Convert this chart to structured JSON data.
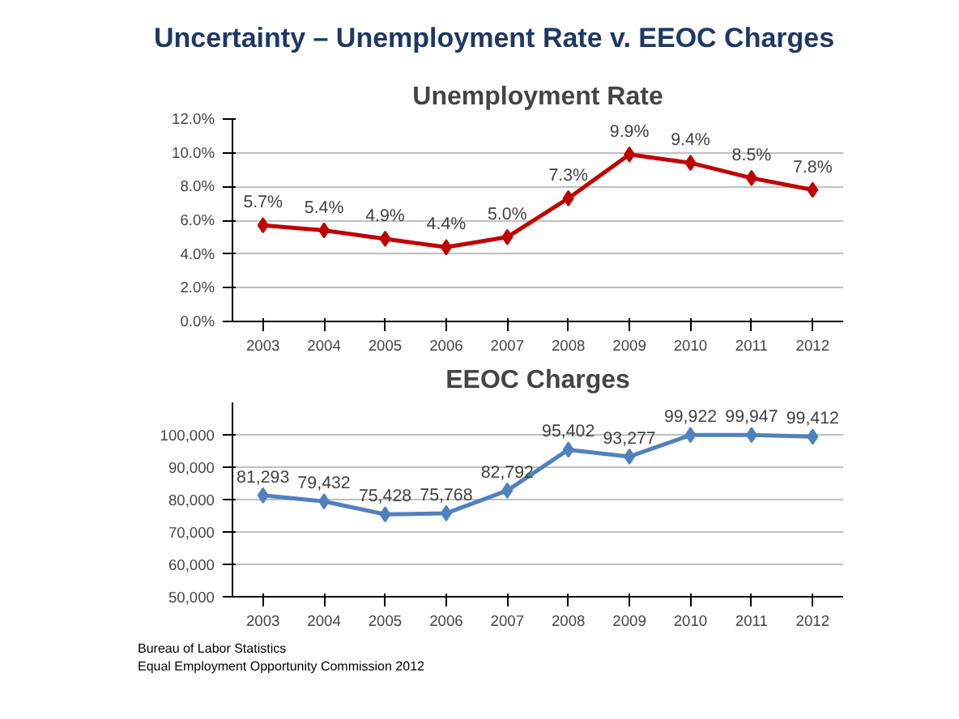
{
  "chart_data": [
    {
      "type": "line",
      "title": "Uncertainty – Unemployment Rate v. EEOC Charges",
      "subtitle": "Unemployment Rate",
      "categories": [
        "2003",
        "2004",
        "2005",
        "2006",
        "2007",
        "2008",
        "2009",
        "2010",
        "2011",
        "2012"
      ],
      "series": [
        {
          "color": "#c00000",
          "values": [
            5.7,
            5.4,
            4.9,
            4.4,
            5.0,
            7.3,
            9.9,
            9.4,
            8.5,
            7.8
          ],
          "value_labels": [
            "5.7%",
            "5.4%",
            "4.9%",
            "4.4%",
            "5.0%",
            "7.3%",
            "9.9%",
            "9.4%",
            "8.5%",
            "7.8%"
          ]
        }
      ],
      "ylim": [
        0,
        12
      ],
      "yticks": [
        {
          "value": 0,
          "label": "0.0%"
        },
        {
          "value": 2,
          "label": "2.0%"
        },
        {
          "value": 4,
          "label": "4.0%"
        },
        {
          "value": 6,
          "label": "6.0%"
        },
        {
          "value": 8,
          "label": "8.0%"
        },
        {
          "value": 10,
          "label": "10.0%"
        },
        {
          "value": 12,
          "label": "12.0%"
        }
      ],
      "grid": "y",
      "marker": "diamond",
      "line_style": "solid"
    },
    {
      "type": "line",
      "title": "EEOC Charges",
      "categories": [
        "2003",
        "2004",
        "2005",
        "2006",
        "2007",
        "2008",
        "2009",
        "2010",
        "2011",
        "2012"
      ],
      "series": [
        {
          "color": "#4f81bd",
          "values": [
            81293,
            79432,
            75428,
            75768,
            82792,
            95402,
            93277,
            99922,
            99947,
            99412
          ],
          "value_labels": [
            "81,293",
            "79,432",
            "75,428",
            "75,768",
            "82,792",
            "95,402",
            "93,277",
            "99,922",
            "99,947",
            "99,412"
          ]
        }
      ],
      "ylim": [
        50000,
        110000
      ],
      "yticks": [
        {
          "value": 50000,
          "label": "50,000"
        },
        {
          "value": 60000,
          "label": "60,000"
        },
        {
          "value": 70000,
          "label": "70,000"
        },
        {
          "value": 80000,
          "label": "80,000"
        },
        {
          "value": 90000,
          "label": "90,000"
        },
        {
          "value": 100000,
          "label": "100,000"
        }
      ],
      "grid": "y",
      "marker": "diamond",
      "line_style": "solid",
      "annotations": [
        "Bureau of Labor Statistics",
        "Equal Employment Opportunity Commission  2012"
      ]
    }
  ]
}
